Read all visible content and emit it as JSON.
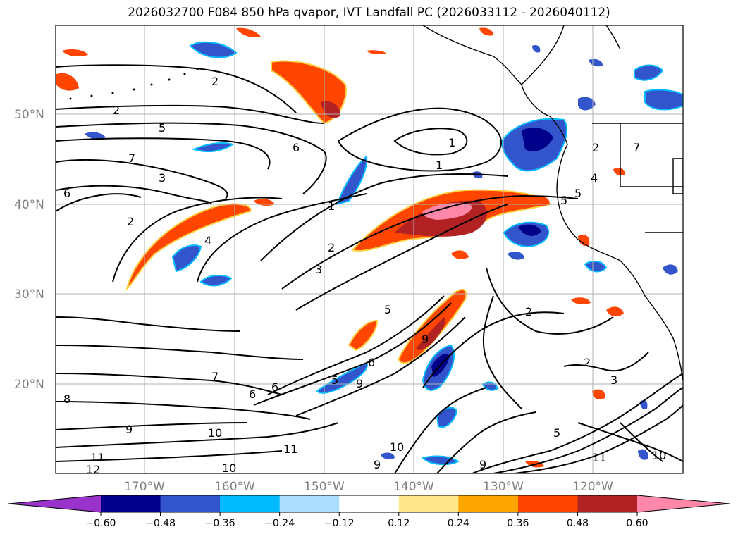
{
  "title": "2026032700 F084 850 hPa qvapor, IVT Landfall PC (2026033112 - 2026040112)",
  "lat_labels": [
    "50°N",
    "40°N",
    "30°N",
    "20°N"
  ],
  "lon_labels": [
    "170°W",
    "160°W",
    "150°W",
    "140°W",
    "130°W",
    "120°W"
  ],
  "colorbar": {
    "colors": [
      "#9933cc",
      "#00008b",
      "#3355cc",
      "#00bbff",
      "#aaddff",
      "#ffffff",
      "#ffe88c",
      "#ffa500",
      "#ff4500",
      "#b22222",
      "#ff88aa"
    ],
    "ticks": [
      "−0.60",
      "−0.48",
      "−0.36",
      "−0.24",
      "−0.12",
      "0.12",
      "0.24",
      "0.36",
      "0.48",
      "0.60"
    ]
  },
  "contour_labels": [
    "2",
    "2",
    "5",
    "7",
    "3",
    "6",
    "2",
    "4",
    "1",
    "1",
    "2",
    "3",
    "1",
    "4",
    "5",
    "2",
    "6",
    "5",
    "9",
    "6",
    "5",
    "9",
    "7",
    "8",
    "6",
    "9",
    "10",
    "11",
    "11",
    "12",
    "10",
    "10",
    "9",
    "9",
    "2",
    "3",
    "5",
    "11",
    "10",
    "2",
    "6",
    "7",
    "5"
  ]
}
